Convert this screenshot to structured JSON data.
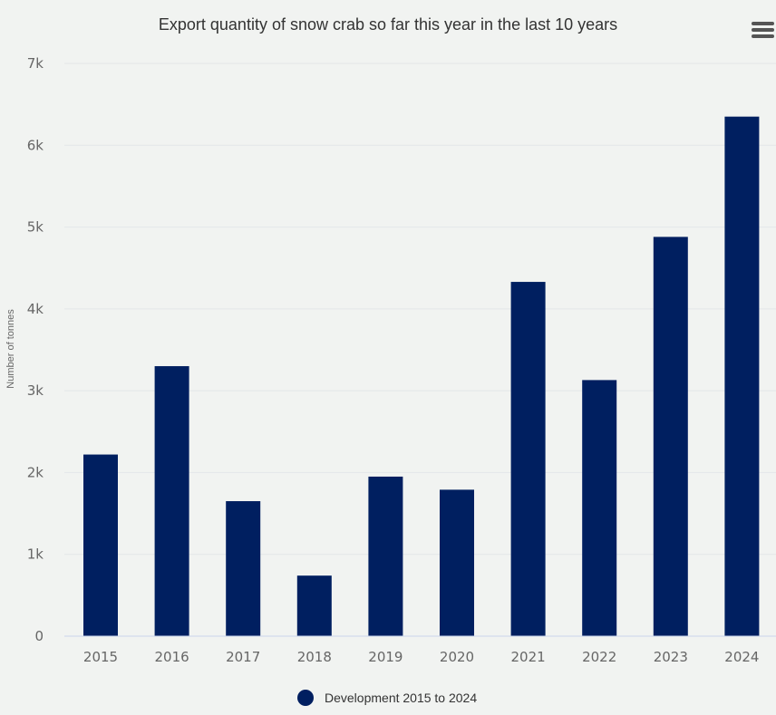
{
  "chart_data": {
    "type": "bar",
    "title": "Export quantity of snow crab so far this year in the last 10 years",
    "ylabel": "Number of tonnes",
    "xlabel": "",
    "categories": [
      "2015",
      "2016",
      "2017",
      "2018",
      "2019",
      "2020",
      "2021",
      "2022",
      "2023",
      "2024"
    ],
    "series": [
      {
        "name": "Development 2015 to 2024",
        "values": [
          2220,
          3300,
          1650,
          740,
          1950,
          1790,
          4330,
          3130,
          4880,
          6350
        ],
        "color": "#001f60"
      }
    ],
    "ylim": [
      0,
      7000
    ],
    "yticks": [
      0,
      1000,
      2000,
      3000,
      4000,
      5000,
      6000,
      7000
    ],
    "ytick_labels": [
      "0",
      "1k",
      "2k",
      "3k",
      "4k",
      "5k",
      "6k",
      "7k"
    ],
    "grid": true,
    "legend_position": "bottom-center"
  },
  "menu": {
    "icon": "hamburger-menu-icon"
  },
  "colors": {
    "background": "#f1f3f1",
    "grid": "#e3e6e8",
    "axis": "#ccd6eb",
    "bar": "#001f60"
  }
}
